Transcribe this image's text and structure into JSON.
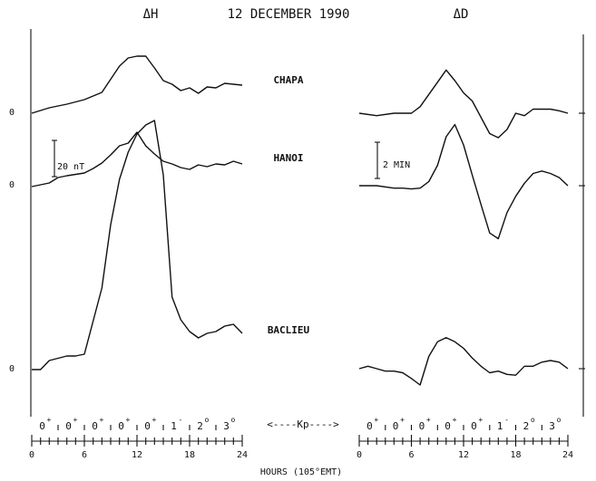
{
  "header": {
    "left_title": "ΔH",
    "date": "12 DECEMBER 1990",
    "right_title": "ΔD"
  },
  "stations": [
    "CHAPA",
    "HANOI",
    "BACLIEU"
  ],
  "scale_bars": {
    "h": "20 nT",
    "d": "2 MIN"
  },
  "zero_label": "0",
  "kp_label": "<----Kp---->",
  "xlabel": "HOURS (105°EMT)",
  "x_ticks": [
    "0",
    "6",
    "12",
    "18",
    "24"
  ],
  "kp_values": [
    {
      "base": "0",
      "sup": "+"
    },
    {
      "base": "0",
      "sup": "+"
    },
    {
      "base": "0",
      "sup": "+"
    },
    {
      "base": "0",
      "sup": "+"
    },
    {
      "base": "0",
      "sup": "+"
    },
    {
      "base": "1",
      "sup": "-"
    },
    {
      "base": "2",
      "sup": "o"
    },
    {
      "base": "3",
      "sup": "o"
    }
  ],
  "chart_data": [
    {
      "type": "line",
      "title": "ΔH",
      "xlabel": "HOURS (105°EMT)",
      "ylabel": "",
      "xlim": [
        0,
        24
      ],
      "y_units": "nT",
      "series": [
        {
          "name": "CHAPA",
          "x": [
            0,
            2,
            3,
            4,
            6,
            8,
            10,
            11,
            12,
            13,
            14,
            15,
            16,
            17,
            18,
            19,
            20,
            21,
            22,
            23,
            24
          ],
          "y": [
            0,
            6,
            8,
            10,
            15,
            23,
            52,
            61,
            63,
            63,
            50,
            36,
            32,
            25,
            28,
            22,
            29,
            28,
            33,
            32,
            31
          ]
        },
        {
          "name": "HANOI",
          "x": [
            0,
            2,
            3,
            4,
            6,
            7,
            8,
            9,
            10,
            11,
            12,
            13,
            14,
            15,
            16,
            17,
            18,
            19,
            20,
            21,
            22,
            23,
            24
          ],
          "y": [
            0,
            4,
            10,
            12,
            15,
            20,
            26,
            35,
            45,
            48,
            60,
            45,
            36,
            28,
            25,
            21,
            19,
            24,
            22,
            25,
            24,
            28,
            25
          ]
        },
        {
          "name": "BACLIEU",
          "x": [
            0,
            1,
            2,
            4,
            5,
            6,
            8,
            9,
            10,
            11,
            12,
            13,
            14,
            15,
            16,
            17,
            18,
            19,
            20,
            21,
            22,
            23,
            24
          ],
          "y": [
            0,
            0,
            10,
            15,
            15,
            17,
            90,
            160,
            210,
            240,
            260,
            270,
            275,
            215,
            80,
            55,
            42,
            35,
            40,
            42,
            48,
            50,
            40
          ]
        }
      ]
    },
    {
      "type": "line",
      "title": "ΔD",
      "xlabel": "HOURS (105°EMT)",
      "ylabel": "",
      "xlim": [
        0,
        24
      ],
      "y_units": "MIN",
      "series": [
        {
          "name": "CHAPA",
          "x": [
            0,
            2,
            4,
            6,
            7,
            8,
            9,
            10,
            11,
            12,
            13,
            14,
            15,
            16,
            17,
            18,
            19,
            20,
            21,
            22,
            23,
            24
          ],
          "y": [
            0,
            -0.3,
            0,
            0,
            0.8,
            2.3,
            3.8,
            5.3,
            4,
            2.5,
            1.5,
            -0.5,
            -2.5,
            -3,
            -2,
            0,
            -0.3,
            0.5,
            0.5,
            0.5,
            0.3,
            0
          ]
        },
        {
          "name": "HANOI",
          "x": [
            0,
            2,
            4,
            5,
            6,
            7,
            8,
            9,
            10,
            11,
            12,
            13,
            14,
            15,
            16,
            17,
            18,
            19,
            20,
            21,
            22,
            23,
            24
          ],
          "y": [
            0,
            0,
            -0.3,
            -0.3,
            -0.4,
            -0.3,
            0.5,
            2.5,
            6,
            7.5,
            5,
            1.3,
            -2.3,
            -5.8,
            -6.5,
            -3.3,
            -1.3,
            0.3,
            1.5,
            1.8,
            1.5,
            1,
            0
          ]
        },
        {
          "name": "BACLIEU",
          "x": [
            0,
            1,
            2,
            3,
            4,
            5,
            6,
            7,
            8,
            9,
            10,
            11,
            12,
            13,
            14,
            15,
            16,
            17,
            18,
            19,
            20,
            21,
            22,
            23,
            24
          ],
          "y": [
            0,
            0.3,
            0,
            -0.3,
            -0.3,
            -0.5,
            -1.2,
            -2,
            1.5,
            3.3,
            3.8,
            3.3,
            2.5,
            1.3,
            0.3,
            -0.5,
            -0.3,
            -0.7,
            -0.8,
            0.3,
            0.3,
            0.8,
            1,
            0.8,
            0
          ]
        }
      ]
    }
  ]
}
